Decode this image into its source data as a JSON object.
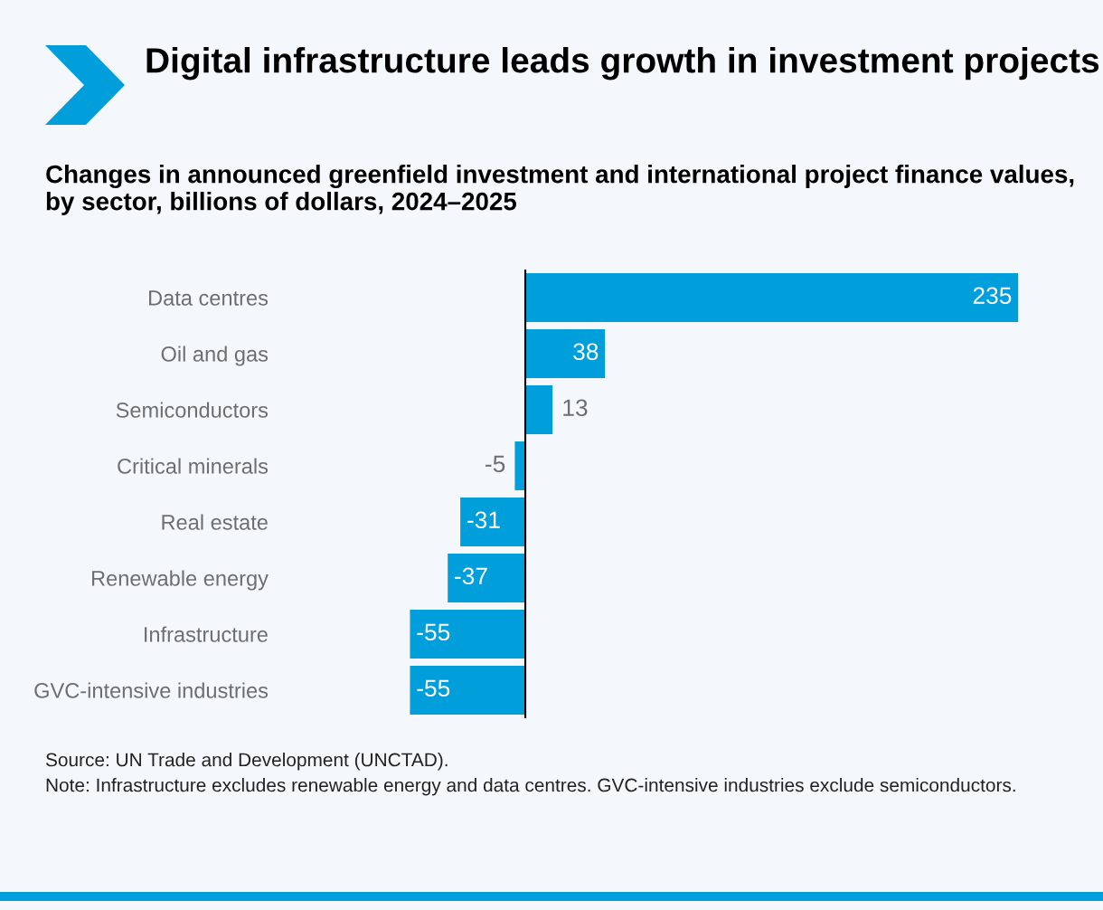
{
  "chart_data": {
    "type": "bar",
    "orientation": "horizontal",
    "title": "Digital infrastructure leads growth in investment projects",
    "subtitle": "Changes in announced greenfield investment and international project finance values, by sector, billions of dollars, 2024–2025",
    "categories": [
      "Data centres",
      "Oil and gas",
      "Semiconductors",
      "Critical minerals",
      "Real estate",
      "Renewable energy",
      "Infrastructure",
      "GVC-intensive industries"
    ],
    "values": [
      235,
      38,
      13,
      -5,
      -31,
      -37,
      -55,
      -55
    ],
    "color": "#009edb",
    "data_labels": true,
    "grid": false,
    "legend": false,
    "tick_labels": "y",
    "annotations": [
      "Source: UN Trade and Development (UNCTAD).",
      "Note: Infrastructure excludes renewable energy and data centres. GVC-intensive industries exclude semiconductors."
    ]
  }
}
